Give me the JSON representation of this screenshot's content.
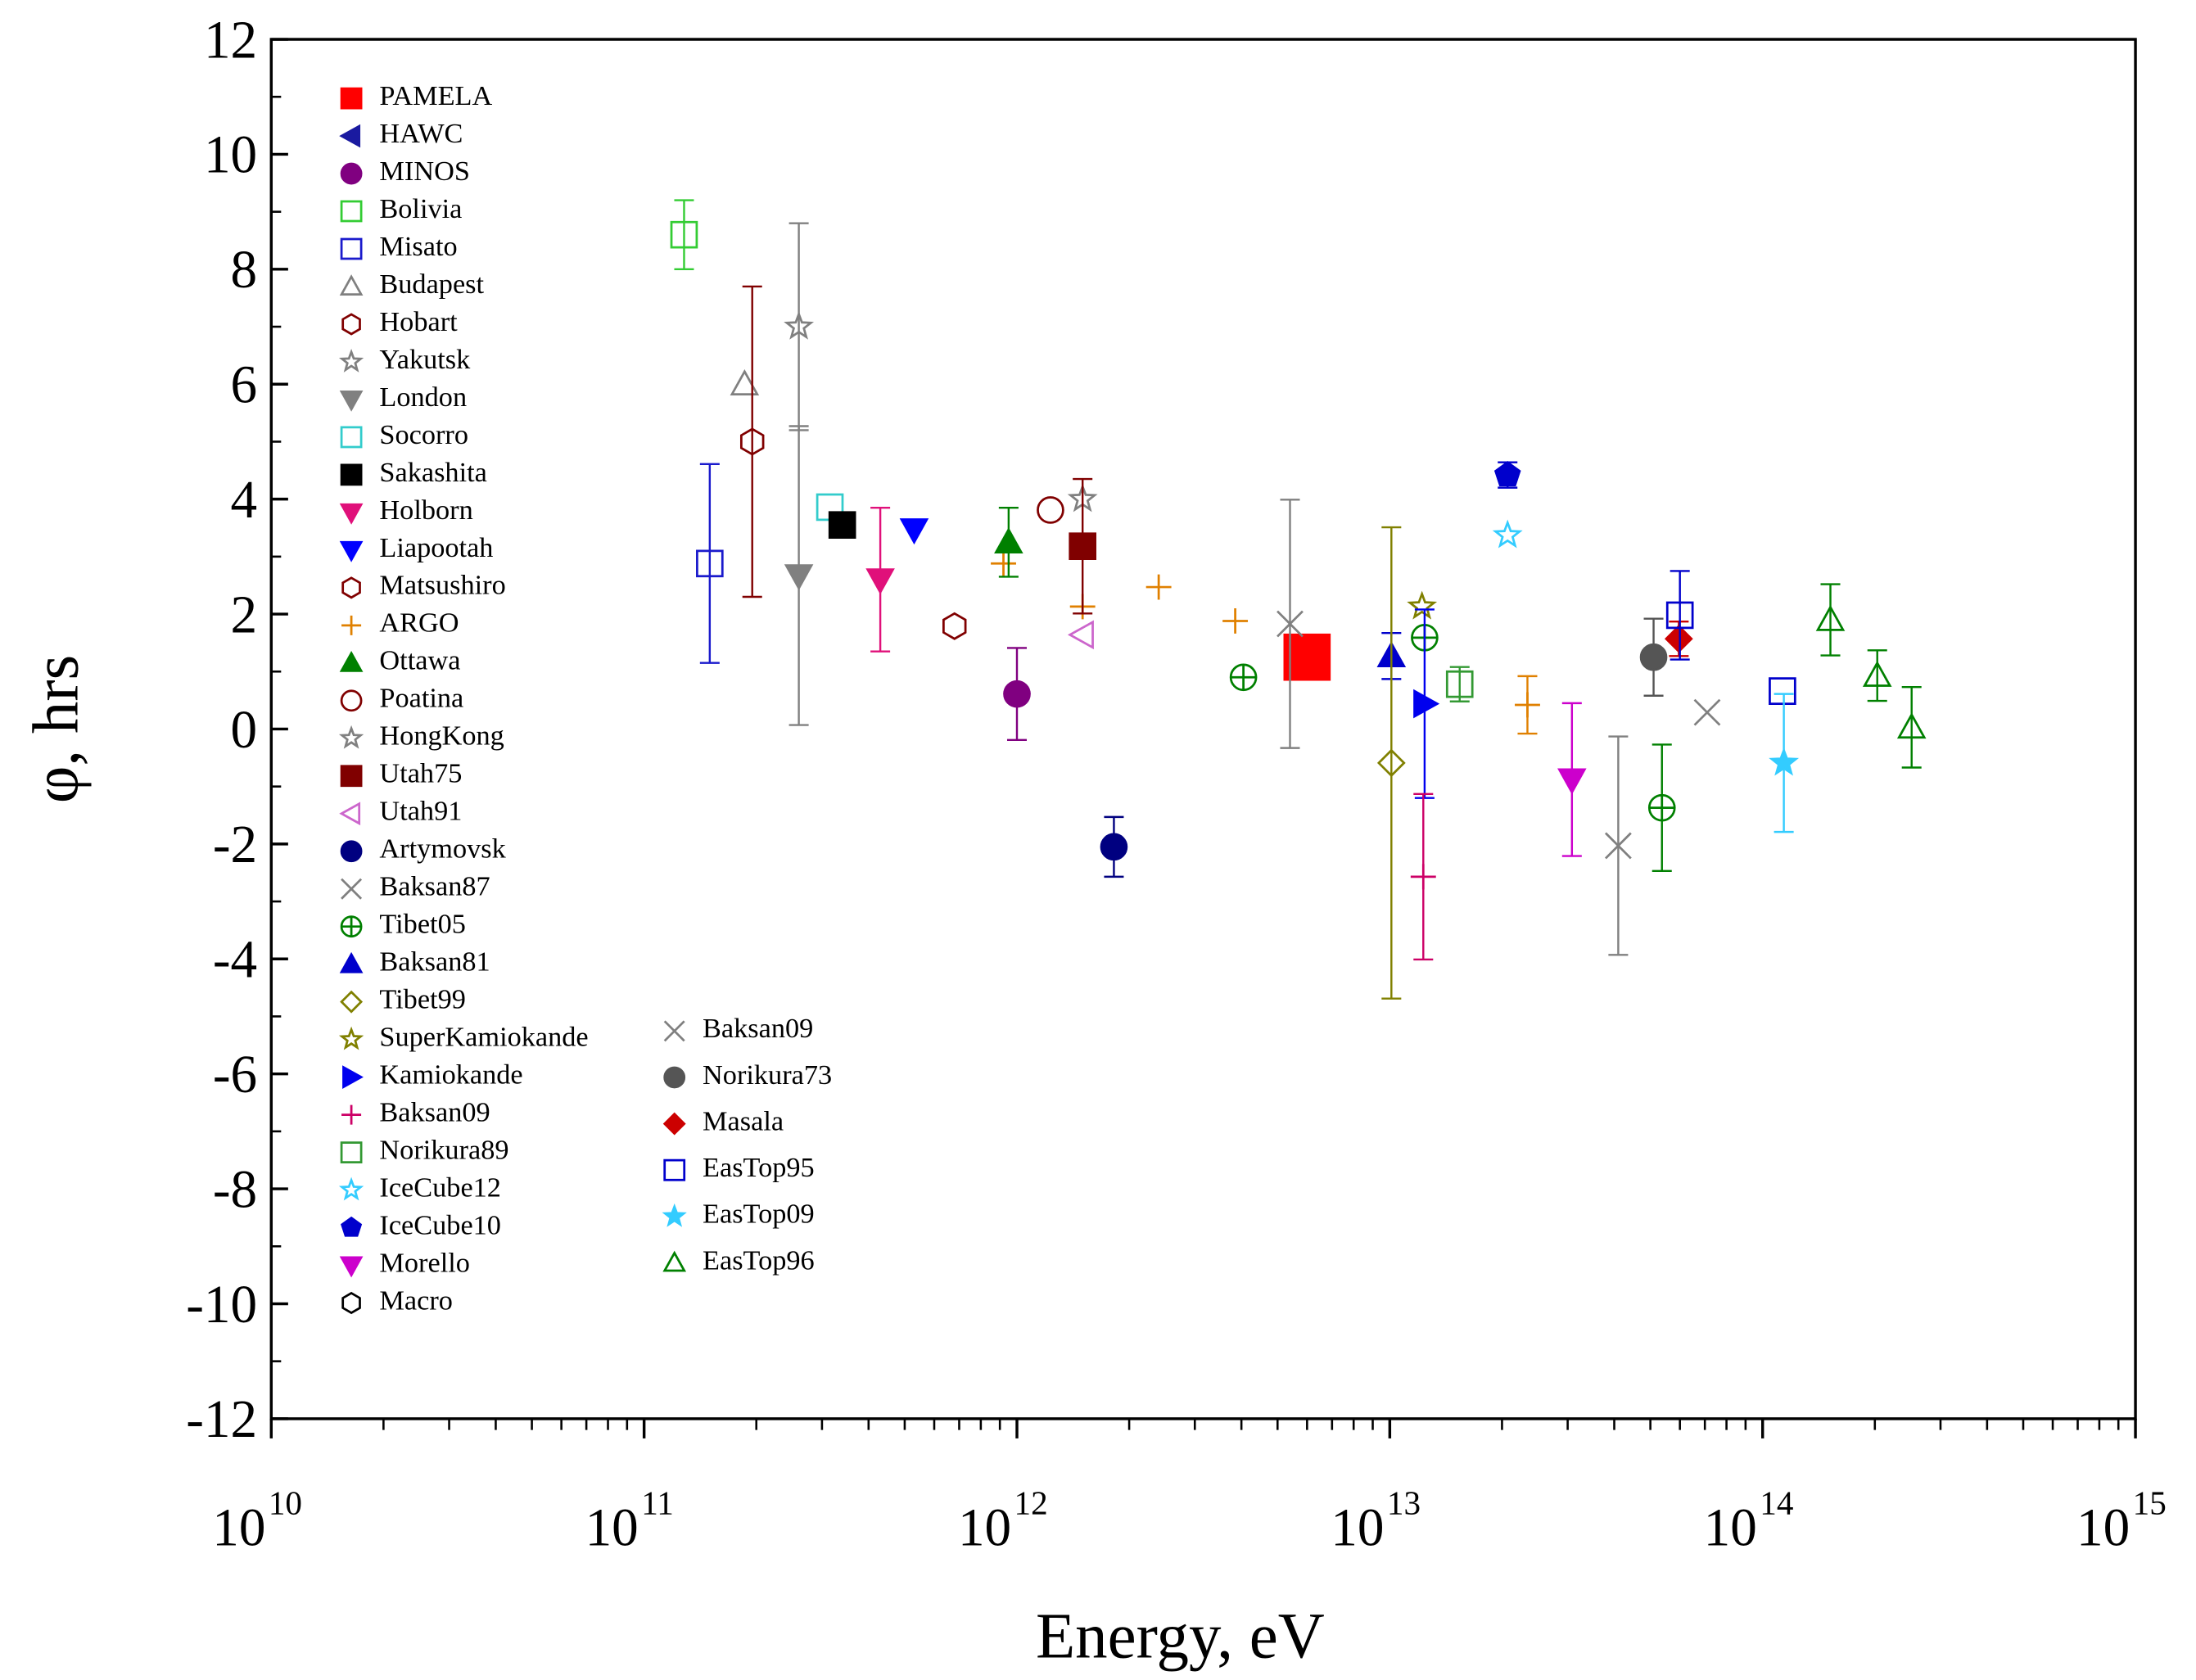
{
  "chart_data": {
    "type": "scatter",
    "xlabel": "Energy, eV",
    "ylabel": "φ, hrs",
    "xscale": "log",
    "xlim": [
      10000000000.0,
      1000000000000000.0
    ],
    "xticks": [
      {
        "value": 10000000000.0,
        "label": "10",
        "exponent": "10"
      },
      {
        "value": 100000000000.0,
        "label": "10",
        "exponent": "11"
      },
      {
        "value": 1000000000000.0,
        "label": "10",
        "exponent": "12"
      },
      {
        "value": 10000000000000.0,
        "label": "10",
        "exponent": "13"
      },
      {
        "value": 100000000000000.0,
        "label": "10",
        "exponent": "14"
      },
      {
        "value": 1000000000000000.0,
        "label": "10",
        "exponent": "15"
      }
    ],
    "ylim": [
      -12,
      12
    ],
    "yticks": [
      -12,
      -10,
      -8,
      -6,
      -4,
      -2,
      0,
      2,
      4,
      6,
      8,
      10,
      12
    ],
    "legend": "upper left",
    "series": [
      {
        "name": "PAMELA",
        "color": "#ff0000",
        "marker": "square",
        "filled": true,
        "x": [
          6000000000000.0
        ],
        "values": [
          1.25
        ],
        "errors": [
          null
        ]
      },
      {
        "name": "HAWC",
        "color": "#1a1aa0",
        "marker": "left",
        "filled": true,
        "x": [],
        "values": [],
        "errors": []
      },
      {
        "name": "MINOS",
        "color": "#800080",
        "marker": "halfcircle",
        "filled": true,
        "x": [
          1000000000000.0
        ],
        "values": [
          0.61
        ],
        "errors": [
          0.8
        ]
      },
      {
        "name": "Bolivia",
        "color": "#33cc33",
        "marker": "square",
        "filled": false,
        "x": [
          128000000000.0
        ],
        "values": [
          8.6
        ],
        "errors": [
          0.6
        ]
      },
      {
        "name": "Misato",
        "color": "#1a1acc",
        "marker": "square",
        "filled": false,
        "x": [
          150000000000.0
        ],
        "values": [
          2.88
        ],
        "errors": [
          1.73
        ]
      },
      {
        "name": "Budapest",
        "color": "#808080",
        "marker": "up",
        "filled": false,
        "x": [
          186000000000.0
        ],
        "values": [
          6.0
        ],
        "errors": [
          null
        ]
      },
      {
        "name": "Hobart",
        "color": "#800000",
        "marker": "hexagon",
        "filled": false,
        "x": [
          195000000000.0
        ],
        "values": [
          5.0
        ],
        "errors": [
          2.7
        ]
      },
      {
        "name": "Yakutsk",
        "color": "#808080",
        "marker": "star",
        "filled": false,
        "x": [
          260000000000.0
        ],
        "values": [
          7.0
        ],
        "errors": [
          1.8
        ]
      },
      {
        "name": "London",
        "color": "#808080",
        "marker": "down",
        "filled": true,
        "x": [
          260000000000.0
        ],
        "values": [
          2.67
        ],
        "errors": [
          2.6
        ]
      },
      {
        "name": "Socorro",
        "color": "#33cccc",
        "marker": "square",
        "filled": false,
        "x": [
          315000000000.0
        ],
        "values": [
          3.86
        ],
        "errors": [
          null
        ]
      },
      {
        "name": "Sakashita",
        "color": "#000000",
        "marker": "square",
        "filled": true,
        "x": [
          340000000000.0
        ],
        "values": [
          3.55
        ],
        "errors": [
          null
        ]
      },
      {
        "name": "Holborn",
        "color": "#e0107a",
        "marker": "down",
        "filled": true,
        "x": [
          430000000000.0
        ],
        "values": [
          2.6
        ],
        "errors": [
          1.25
        ]
      },
      {
        "name": "Liapootah",
        "color": "#0000ff",
        "marker": "down",
        "filled": true,
        "x": [
          530000000000.0
        ],
        "values": [
          3.47
        ],
        "errors": [
          null
        ]
      },
      {
        "name": "Matsushiro",
        "color": "#800000",
        "marker": "hexagon",
        "filled": false,
        "x": [
          680000000000.0
        ],
        "values": [
          1.79
        ],
        "errors": [
          null
        ]
      },
      {
        "name": "ARGO",
        "color": "#e08000",
        "marker": "plus",
        "filled": false,
        "x": [
          920000000000.0,
          1500000000000.0,
          2400000000000.0,
          3850000000000.0,
          23400000000000.0
        ],
        "values": [
          2.88,
          2.13,
          2.47,
          1.88,
          0.42
        ],
        "errors": [
          null,
          null,
          null,
          null,
          0.5
        ]
      },
      {
        "name": "Ottawa",
        "color": "#008000",
        "marker": "up",
        "filled": true,
        "x": [
          950000000000.0
        ],
        "values": [
          3.25
        ],
        "errors": [
          0.6
        ]
      },
      {
        "name": "Poatina",
        "color": "#800000",
        "marker": "circle",
        "filled": false,
        "x": [
          1230000000000.0
        ],
        "values": [
          3.81
        ],
        "errors": [
          null
        ]
      },
      {
        "name": "HongKong",
        "color": "#808080",
        "marker": "star",
        "filled": false,
        "x": [
          1500000000000.0
        ],
        "values": [
          4.0
        ],
        "errors": [
          null
        ]
      },
      {
        "name": "Utah75",
        "color": "#800000",
        "marker": "square",
        "filled": true,
        "x": [
          1500000000000.0
        ],
        "values": [
          3.18
        ],
        "errors": [
          1.17
        ]
      },
      {
        "name": "Utah91",
        "color": "#cc66cc",
        "marker": "left",
        "filled": false,
        "x": [
          1500000000000.0
        ],
        "values": [
          1.64
        ],
        "errors": [
          null
        ]
      },
      {
        "name": "Artymovsk",
        "color": "#000080",
        "marker": "circle",
        "filled": true,
        "x": [
          1820000000000.0
        ],
        "values": [
          -2.05
        ],
        "errors": [
          0.52
        ]
      },
      {
        "name": "Baksan87",
        "color": "#808080",
        "marker": "cross",
        "filled": false,
        "x": [
          5400000000000.0,
          71000000000000.0
        ],
        "values": [
          1.83,
          0.29
        ],
        "errors": [
          2.16,
          null
        ]
      },
      {
        "name": "Tibet05",
        "color": "#008000",
        "marker": "circleplus",
        "filled": false,
        "x": [
          4050000000000.0,
          12400000000000.0,
          53700000000000.0
        ],
        "values": [
          0.9,
          1.59,
          -1.37
        ],
        "errors": [
          null,
          null,
          1.1
        ]
      },
      {
        "name": "Baksan81",
        "color": "#0000cc",
        "marker": "up",
        "filled": true,
        "x": [
          10100000000000.0
        ],
        "values": [
          1.27
        ],
        "errors": [
          0.4
        ]
      },
      {
        "name": "Tibet99",
        "color": "#808000",
        "marker": "diamond",
        "filled": false,
        "x": [
          10100000000000.0
        ],
        "values": [
          -0.59
        ],
        "errors": [
          4.1
        ]
      },
      {
        "name": "SuperKamiokande",
        "color": "#808000",
        "marker": "star",
        "filled": false,
        "x": [
          12200000000000.0
        ],
        "values": [
          2.13
        ],
        "errors": [
          null
        ]
      },
      {
        "name": "Kamiokande",
        "color": "#0000ee",
        "marker": "right",
        "filled": true,
        "x": [
          12400000000000.0
        ],
        "values": [
          0.44
        ],
        "errors": [
          1.64
        ]
      },
      {
        "name": "Baksan09",
        "color": "#cc0066",
        "marker": "plus",
        "filled": false,
        "x": [
          12300000000000.0
        ],
        "values": [
          -2.57
        ],
        "errors": [
          1.44
        ]
      },
      {
        "name": "Norikura89",
        "color": "#339933",
        "marker": "square",
        "filled": false,
        "x": [
          15400000000000.0
        ],
        "values": [
          0.78
        ],
        "errors": [
          0.3
        ]
      },
      {
        "name": "IceCube12",
        "color": "#33ccff",
        "marker": "star",
        "filled": false,
        "x": [
          20700000000000.0
        ],
        "values": [
          3.37
        ],
        "errors": [
          null
        ]
      },
      {
        "name": "IceCube10",
        "color": "#0000cc",
        "marker": "pentagon",
        "filled": true,
        "x": [
          20700000000000.0
        ],
        "values": [
          4.42
        ],
        "errors": [
          0.22
        ]
      },
      {
        "name": "Morello",
        "color": "#cc00cc",
        "marker": "down",
        "filled": true,
        "x": [
          30800000000000.0
        ],
        "values": [
          -0.88
        ],
        "errors": [
          1.33
        ]
      },
      {
        "name": "Macro",
        "color": "#000000",
        "marker": "hexagon",
        "filled": false,
        "x": [],
        "values": [],
        "errors": []
      },
      {
        "name": "Baksan09",
        "color": "#808080",
        "marker": "cross",
        "filled": false,
        "x": [
          41000000000000.0
        ],
        "values": [
          -2.03
        ],
        "errors": [
          1.9
        ]
      },
      {
        "name": "Norikura73",
        "color": "#555555",
        "marker": "circle",
        "filled": true,
        "x": [
          51000000000000.0
        ],
        "values": [
          1.25
        ],
        "errors": [
          0.67
        ]
      },
      {
        "name": "Masala",
        "color": "#cc0000",
        "marker": "diamond",
        "filled": true,
        "x": [
          59600000000000.0
        ],
        "values": [
          1.57
        ],
        "errors": [
          0.3
        ]
      },
      {
        "name": "EasTop95",
        "color": "#0000cc",
        "marker": "square",
        "filled": false,
        "x": [
          60000000000000.0,
          113000000000000.0
        ],
        "values": [
          1.98,
          0.66
        ],
        "errors": [
          0.77,
          null
        ]
      },
      {
        "name": "EasTop09",
        "color": "#33ccff",
        "marker": "star",
        "filled": true,
        "x": [
          114000000000000.0
        ],
        "values": [
          -0.59
        ],
        "errors": [
          1.2
        ]
      },
      {
        "name": "EasTop96",
        "color": "#008000",
        "marker": "up",
        "filled": false,
        "x": [
          152000000000000.0,
          203000000000000.0,
          251000000000000.0
        ],
        "values": [
          1.9,
          0.93,
          0.03
        ],
        "errors": [
          0.62,
          0.44,
          0.7
        ]
      }
    ]
  }
}
